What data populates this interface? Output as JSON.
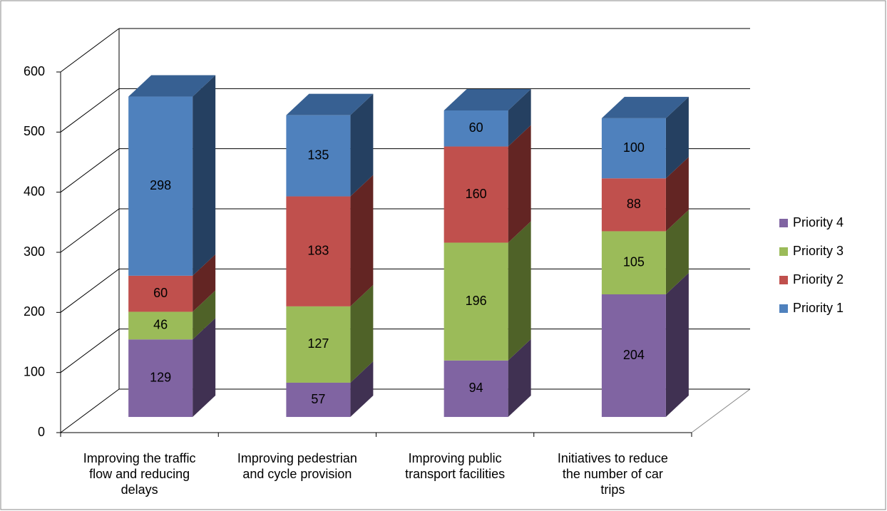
{
  "chart_data": {
    "type": "bar3d_stacked",
    "categories": [
      "Improving the traffic flow and reducing delays",
      "Improving pedestrian and cycle provision",
      "Improving public transport facilities",
      "Initiatives to reduce the number of car trips"
    ],
    "series": [
      {
        "name": "Priority 4",
        "color": "#8064a2",
        "side": "#403152",
        "values": [
          129,
          57,
          94,
          204
        ]
      },
      {
        "name": "Priority 3",
        "color": "#9bbb59",
        "side": "#4f6228",
        "values": [
          46,
          127,
          196,
          105
        ]
      },
      {
        "name": "Priority 2",
        "color": "#c0504d",
        "side": "#632523",
        "values": [
          60,
          183,
          160,
          88
        ]
      },
      {
        "name": "Priority 1",
        "color": "#4f81bd",
        "side": "#254061",
        "top": "#376092",
        "values": [
          298,
          135,
          60,
          100
        ]
      }
    ],
    "ylim": [
      0,
      600
    ],
    "yticks": [
      0,
      100,
      200,
      300,
      400,
      500,
      600
    ],
    "grid": true,
    "legend": "right"
  }
}
